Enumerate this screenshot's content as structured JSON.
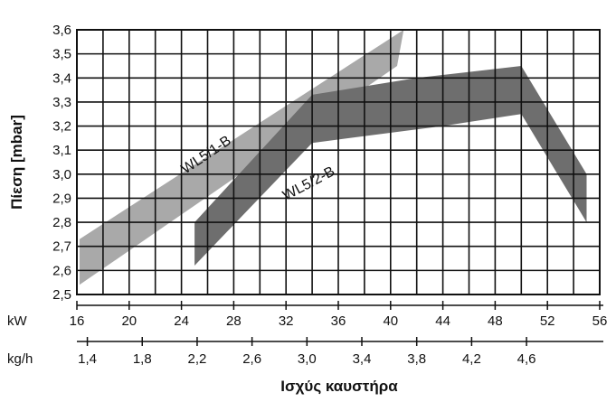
{
  "chart_data": {
    "type": "area",
    "ylabel": "Πίεση [mbar]",
    "xlabel": "Ισχύς καυστήρα",
    "x_axis": {
      "unit": "kW",
      "range": [
        16,
        56
      ],
      "ticks": [
        "16",
        "20",
        "24",
        "28",
        "32",
        "36",
        "40",
        "44",
        "48",
        "52",
        "56"
      ]
    },
    "x2_axis": {
      "unit": "kg/h",
      "ticks": [
        "1,4",
        "1,8",
        "2,2",
        "2,6",
        "3,0",
        "3,4",
        "3,8",
        "4,2",
        "4,6"
      ],
      "tick_positions_kw": [
        16.8,
        21.0,
        25.2,
        29.4,
        33.6,
        37.8,
        42.0,
        46.2,
        50.4
      ]
    },
    "y_axis": {
      "range": [
        2.5,
        3.6
      ],
      "ticks": [
        "2,5",
        "2,6",
        "2,7",
        "2,8",
        "2,9",
        "3,0",
        "3,1",
        "3,2",
        "3,3",
        "3,4",
        "3,5",
        "3,6"
      ]
    },
    "grid": true,
    "series": [
      {
        "name": "WL5/1-B",
        "color": "#a9a9a9",
        "upper": [
          [
            16.2,
            2.73
          ],
          [
            41.0,
            3.6
          ]
        ],
        "lower": [
          [
            16.2,
            2.54
          ],
          [
            40.5,
            3.45
          ]
        ]
      },
      {
        "name": "WL5/2-B",
        "color": "#6e6e6e",
        "upper": [
          [
            25.0,
            2.8
          ],
          [
            34.0,
            3.33
          ],
          [
            42.0,
            3.4
          ],
          [
            50.0,
            3.45
          ],
          [
            55.0,
            3.0
          ]
        ],
        "lower": [
          [
            25.0,
            2.62
          ],
          [
            34.0,
            3.13
          ],
          [
            44.0,
            3.2
          ],
          [
            50.0,
            3.25
          ],
          [
            55.0,
            2.8
          ]
        ]
      }
    ]
  }
}
